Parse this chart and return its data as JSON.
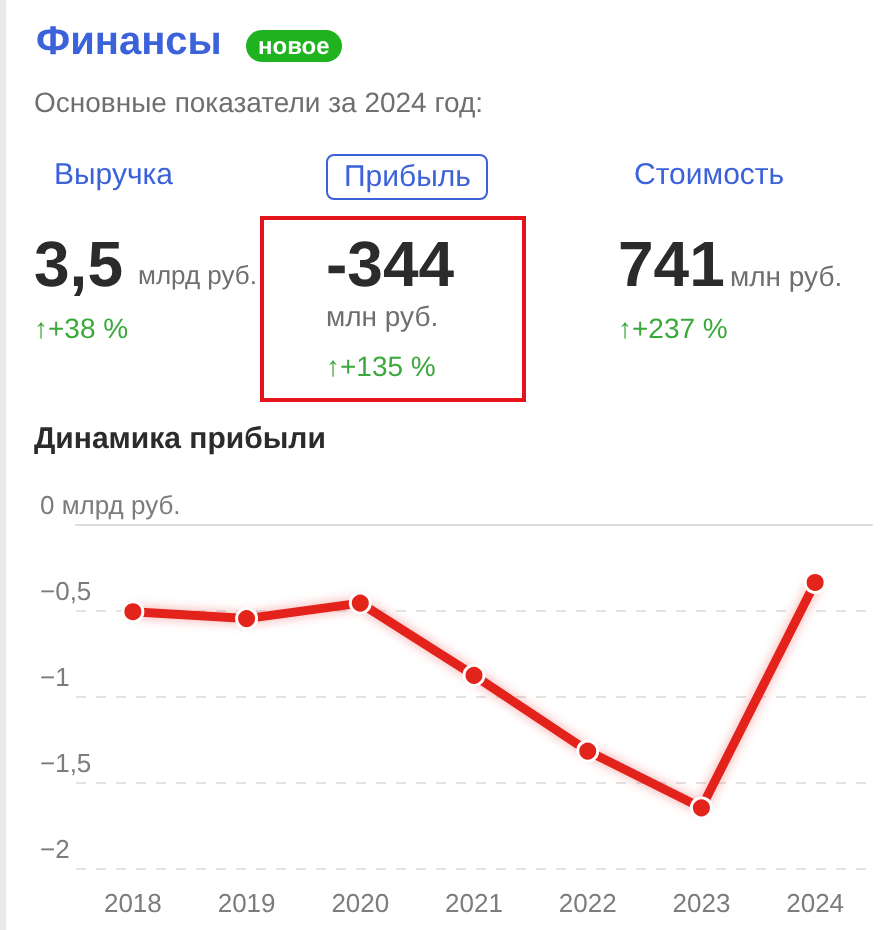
{
  "chart_data": [
    {
      "type": "other",
      "title": "Финансы",
      "subtitle": "Основные показатели за 2024 год:",
      "annotations": [
        "новое",
        "Выручка",
        "Прибыль",
        "Стоимость",
        "3,5",
        "млрд руб.",
        "↑+38 %",
        "-344",
        "млн руб.",
        "↑+135 %",
        "741",
        "млн руб.",
        "↑+237 %"
      ]
    },
    {
      "type": "line",
      "title": "Динамика прибыли",
      "categories": [
        "2018",
        "2019",
        "2020",
        "2021",
        "2022",
        "2023",
        "2024"
      ],
      "values": [
        -0.51,
        -0.55,
        -0.46,
        -0.88,
        -1.32,
        -1.65,
        -0.34
      ],
      "color": "#e3241b",
      "ylim": [
        -2,
        0
      ],
      "yticks": [
        {
          "value": -2,
          "label": "−2"
        },
        {
          "value": -1.5,
          "label": "−1,5"
        },
        {
          "value": -1,
          "label": "−1"
        },
        {
          "value": -0.5,
          "label": "−0,5"
        },
        {
          "value": 0,
          "label": "0 млрд руб."
        }
      ],
      "grid": "y",
      "marker": "circle",
      "line_style": "solid"
    }
  ]
}
